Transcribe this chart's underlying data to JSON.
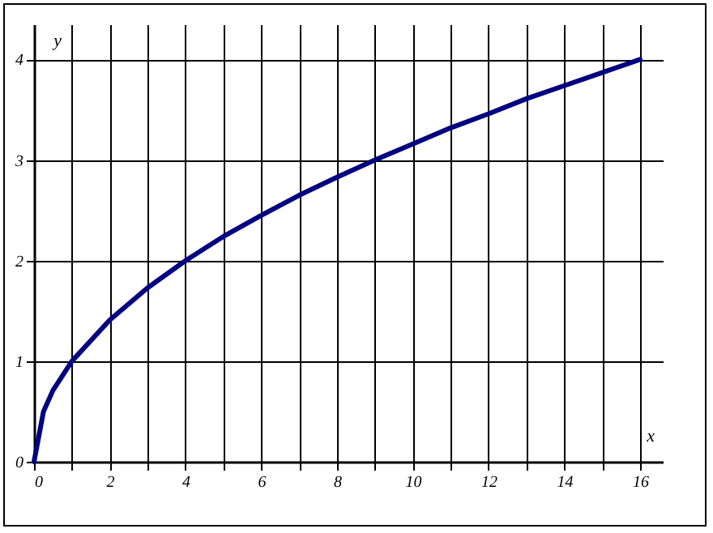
{
  "chart_data": {
    "type": "line",
    "xlabel": "x",
    "ylabel": "y",
    "x": [
      0,
      0.25,
      0.5,
      1,
      2,
      3,
      4,
      5,
      6,
      7,
      8,
      9,
      10,
      11,
      12,
      13,
      14,
      15,
      16
    ],
    "series": [
      {
        "color": "#000080",
        "values": [
          0,
          0.5,
          0.71,
          1,
          1.41,
          1.73,
          2,
          2.24,
          2.45,
          2.65,
          2.83,
          3,
          3.16,
          3.32,
          3.46,
          3.61,
          3.74,
          3.87,
          4
        ]
      }
    ],
    "xlim": [
      0,
      16.6
    ],
    "ylim": [
      0,
      4.35
    ],
    "xticks": [
      0,
      {
        "value": 1,
        "label": null
      },
      2,
      {
        "value": 3,
        "label": null
      },
      4,
      {
        "value": 5,
        "label": null
      },
      6,
      {
        "value": 7,
        "label": null
      },
      8,
      {
        "value": 9,
        "label": null
      },
      10,
      {
        "value": 11,
        "label": null
      },
      12,
      {
        "value": 13,
        "label": null
      },
      14,
      {
        "value": 15,
        "label": null
      },
      16
    ],
    "yticks": [
      0,
      1,
      2,
      3,
      4
    ],
    "grid": true,
    "line_style": "solid",
    "marker": "none"
  }
}
